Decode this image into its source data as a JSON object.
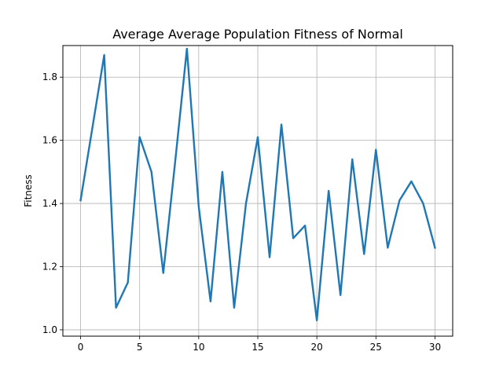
{
  "chart_data": {
    "type": "line",
    "title": "Average Average Population Fitness of Normal",
    "xlabel": "",
    "ylabel": "Fitness",
    "xlim": [
      -1.5,
      31.5
    ],
    "ylim": [
      0.98,
      1.9
    ],
    "xticks": [
      0,
      5,
      10,
      15,
      20,
      25,
      30
    ],
    "yticks": [
      1.0,
      1.2,
      1.4,
      1.6,
      1.8
    ],
    "xtick_labels": [
      "0",
      "5",
      "10",
      "15",
      "20",
      "25",
      "30"
    ],
    "ytick_labels": [
      "1.0",
      "1.2",
      "1.4",
      "1.6",
      "1.8"
    ],
    "grid": true,
    "series": [
      {
        "color": "#1f77b4",
        "x": [
          0,
          1,
          2,
          3,
          4,
          5,
          6,
          7,
          8,
          9,
          10,
          11,
          12,
          13,
          14,
          15,
          16,
          17,
          18,
          19,
          20,
          21,
          22,
          23,
          24,
          25,
          26,
          27,
          28,
          29,
          30
        ],
        "values": [
          1.41,
          1.64,
          1.87,
          1.07,
          1.15,
          1.61,
          1.5,
          1.18,
          1.53,
          1.89,
          1.39,
          1.09,
          1.5,
          1.07,
          1.4,
          1.61,
          1.23,
          1.65,
          1.29,
          1.33,
          1.03,
          1.44,
          1.11,
          1.54,
          1.24,
          1.57,
          1.26,
          1.41,
          1.47,
          1.4,
          1.26
        ]
      }
    ]
  }
}
